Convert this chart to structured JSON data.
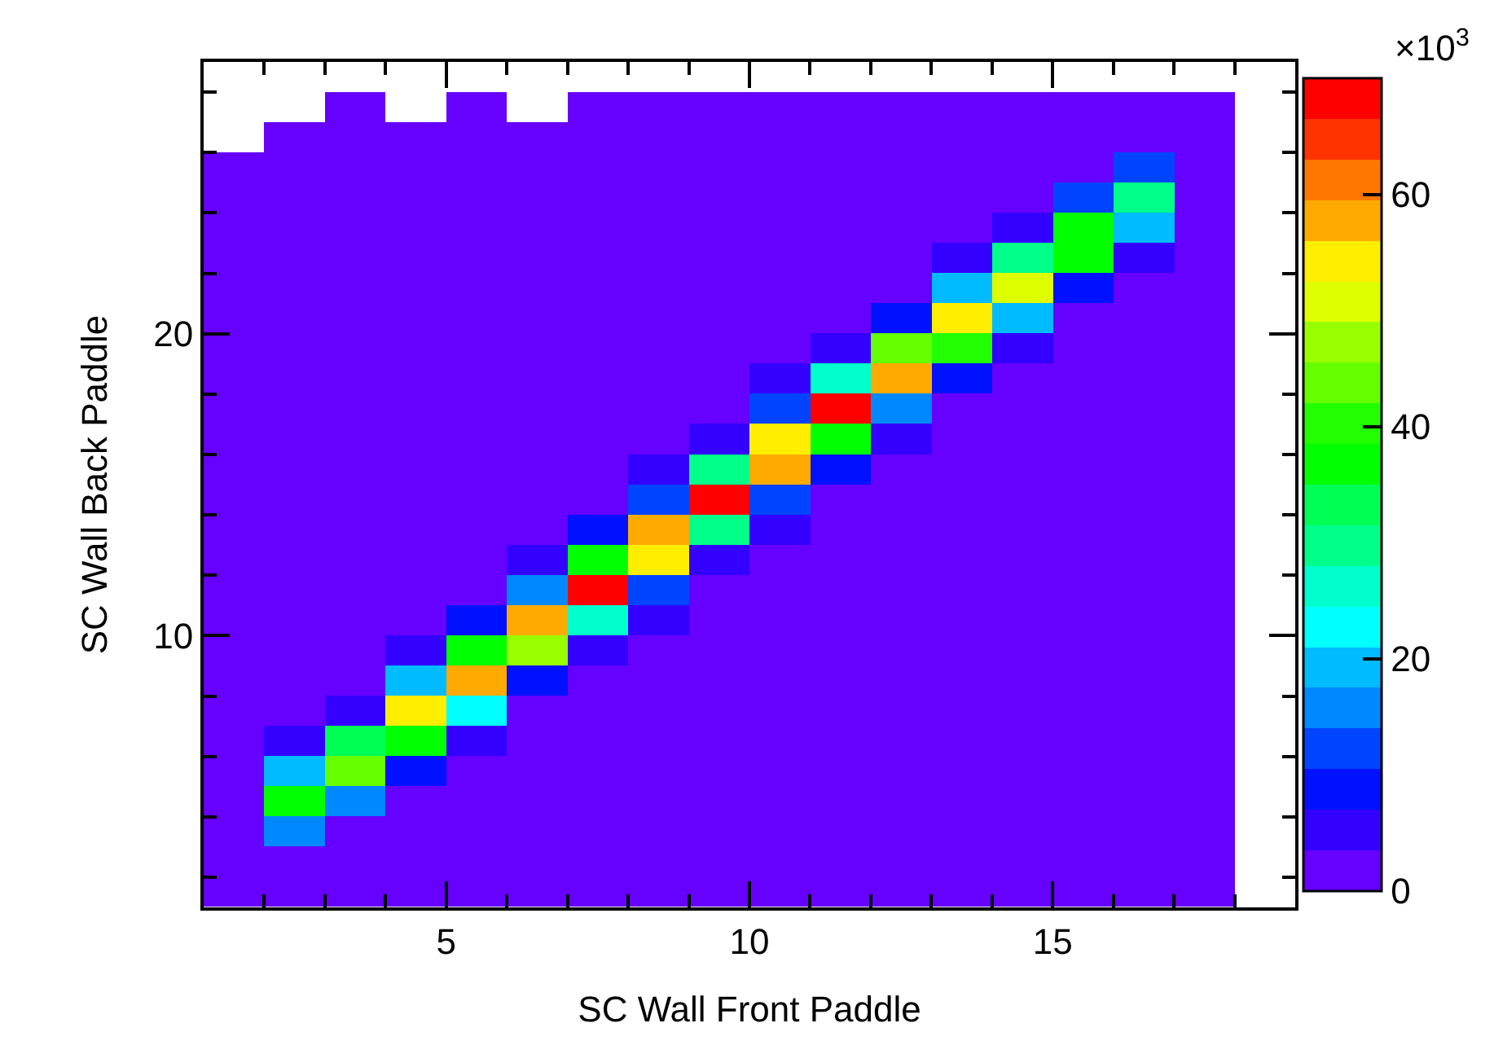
{
  "chart_data": {
    "type": "heatmap",
    "xlabel": "SC Wall Front Paddle",
    "ylabel": "SC Wall Back Paddle",
    "x": [
      1.5,
      2.5,
      3.5,
      4.5,
      5.5,
      6.5,
      7.5,
      8.5,
      9.5,
      10.5,
      11.5,
      12.5,
      13.5,
      14.5,
      15.5,
      16.5,
      17.5
    ],
    "y": [
      27.5,
      26.5,
      25.5,
      24.5,
      23.5,
      22.5,
      21.5,
      20.5,
      19.5,
      18.5,
      17.5,
      16.5,
      15.5,
      14.5,
      13.5,
      12.5,
      11.5,
      10.5,
      9.5,
      8.5,
      7.5,
      6.5,
      5.5,
      4.5,
      3.5,
      2.5,
      1.5
    ],
    "cells": [
      [
        null,
        null,
        1.75,
        null,
        1.75,
        null,
        1.75,
        1.75,
        1.75,
        1.75,
        1.75,
        1.75,
        1.75,
        1.75,
        1.75,
        1.75,
        1.75
      ],
      [
        null,
        1.75,
        1.75,
        1.75,
        1.75,
        1.75,
        1.75,
        1.75,
        1.75,
        1.75,
        1.75,
        1.75,
        1.75,
        1.75,
        1.75,
        1.75,
        1.75
      ],
      [
        1.75,
        1.75,
        1.75,
        1.75,
        1.75,
        1.75,
        1.75,
        1.75,
        1.75,
        1.75,
        1.75,
        1.75,
        1.75,
        1.75,
        1.75,
        12.25,
        1.75
      ],
      [
        1.75,
        1.75,
        1.75,
        1.75,
        1.75,
        1.75,
        1.75,
        1.75,
        1.75,
        1.75,
        1.75,
        1.75,
        1.75,
        1.75,
        12.25,
        29.75,
        1.75
      ],
      [
        1.75,
        1.75,
        1.75,
        1.75,
        1.75,
        1.75,
        1.75,
        1.75,
        1.75,
        1.75,
        1.75,
        1.75,
        1.75,
        5.25,
        36.75,
        19.25,
        1.75
      ],
      [
        1.75,
        1.75,
        1.75,
        1.75,
        1.75,
        1.75,
        1.75,
        1.75,
        1.75,
        1.75,
        1.75,
        1.75,
        5.25,
        29.75,
        36.75,
        5.25,
        1.75
      ],
      [
        1.75,
        1.75,
        1.75,
        1.75,
        1.75,
        1.75,
        1.75,
        1.75,
        1.75,
        1.75,
        1.75,
        1.75,
        19.25,
        50.75,
        8.75,
        1.75,
        1.75
      ],
      [
        1.75,
        1.75,
        1.75,
        1.75,
        1.75,
        1.75,
        1.75,
        1.75,
        1.75,
        1.75,
        1.75,
        8.75,
        54.25,
        19.25,
        1.75,
        1.75,
        1.75
      ],
      [
        1.75,
        1.75,
        1.75,
        1.75,
        1.75,
        1.75,
        1.75,
        1.75,
        1.75,
        1.75,
        5.25,
        43.75,
        40.25,
        5.25,
        1.75,
        1.75,
        1.75
      ],
      [
        1.75,
        1.75,
        1.75,
        1.75,
        1.75,
        1.75,
        1.75,
        1.75,
        1.75,
        5.25,
        26.25,
        57.75,
        8.75,
        1.75,
        1.75,
        1.75,
        1.75
      ],
      [
        1.75,
        1.75,
        1.75,
        1.75,
        1.75,
        1.75,
        1.75,
        1.75,
        1.75,
        12.25,
        68.25,
        15.75,
        1.75,
        1.75,
        1.75,
        1.75,
        1.75
      ],
      [
        1.75,
        1.75,
        1.75,
        1.75,
        1.75,
        1.75,
        1.75,
        1.75,
        5.25,
        54.25,
        36.75,
        5.25,
        1.75,
        1.75,
        1.75,
        1.75,
        1.75
      ],
      [
        1.75,
        1.75,
        1.75,
        1.75,
        1.75,
        1.75,
        1.75,
        5.25,
        29.75,
        57.75,
        8.75,
        1.75,
        1.75,
        1.75,
        1.75,
        1.75,
        1.75
      ],
      [
        1.75,
        1.75,
        1.75,
        1.75,
        1.75,
        1.75,
        1.75,
        12.25,
        68.25,
        12.25,
        1.75,
        1.75,
        1.75,
        1.75,
        1.75,
        1.75,
        1.75
      ],
      [
        1.75,
        1.75,
        1.75,
        1.75,
        1.75,
        1.75,
        8.75,
        57.75,
        29.75,
        5.25,
        1.75,
        1.75,
        1.75,
        1.75,
        1.75,
        1.75,
        1.75
      ],
      [
        1.75,
        1.75,
        1.75,
        1.75,
        1.75,
        5.25,
        36.75,
        54.25,
        5.25,
        1.75,
        1.75,
        1.75,
        1.75,
        1.75,
        1.75,
        1.75,
        1.75
      ],
      [
        1.75,
        1.75,
        1.75,
        1.75,
        1.75,
        15.75,
        68.25,
        12.25,
        1.75,
        1.75,
        1.75,
        1.75,
        1.75,
        1.75,
        1.75,
        1.75,
        1.75
      ],
      [
        1.75,
        1.75,
        1.75,
        1.75,
        8.75,
        57.75,
        26.25,
        5.25,
        1.75,
        1.75,
        1.75,
        1.75,
        1.75,
        1.75,
        1.75,
        1.75,
        1.75
      ],
      [
        1.75,
        1.75,
        1.75,
        5.25,
        36.75,
        47.25,
        5.25,
        1.75,
        1.75,
        1.75,
        1.75,
        1.75,
        1.75,
        1.75,
        1.75,
        1.75,
        1.75
      ],
      [
        1.75,
        1.75,
        1.75,
        19.25,
        57.75,
        8.75,
        1.75,
        1.75,
        1.75,
        1.75,
        1.75,
        1.75,
        1.75,
        1.75,
        1.75,
        1.75,
        1.75
      ],
      [
        1.75,
        1.75,
        5.25,
        54.25,
        22.75,
        1.75,
        1.75,
        1.75,
        1.75,
        1.75,
        1.75,
        1.75,
        1.75,
        1.75,
        1.75,
        1.75,
        1.75
      ],
      [
        1.75,
        5.25,
        33.25,
        36.75,
        5.25,
        1.75,
        1.75,
        1.75,
        1.75,
        1.75,
        1.75,
        1.75,
        1.75,
        1.75,
        1.75,
        1.75,
        1.75
      ],
      [
        1.75,
        19.25,
        43.75,
        8.75,
        1.75,
        1.75,
        1.75,
        1.75,
        1.75,
        1.75,
        1.75,
        1.75,
        1.75,
        1.75,
        1.75,
        1.75,
        1.75
      ],
      [
        1.75,
        36.75,
        15.75,
        1.75,
        1.75,
        1.75,
        1.75,
        1.75,
        1.75,
        1.75,
        1.75,
        1.75,
        1.75,
        1.75,
        1.75,
        1.75,
        1.75
      ],
      [
        1.75,
        15.75,
        1.75,
        1.75,
        1.75,
        1.75,
        1.75,
        1.75,
        1.75,
        1.75,
        1.75,
        1.75,
        1.75,
        1.75,
        1.75,
        1.75,
        1.75
      ],
      [
        1.75,
        1.75,
        1.75,
        1.75,
        1.75,
        1.75,
        1.75,
        1.75,
        1.75,
        1.75,
        1.75,
        1.75,
        1.75,
        1.75,
        1.75,
        1.75,
        1.75
      ],
      [
        1.75,
        1.75,
        1.75,
        1.75,
        1.75,
        1.75,
        1.75,
        1.75,
        1.75,
        1.75,
        1.75,
        1.75,
        1.75,
        1.75,
        1.75,
        1.75,
        1.75
      ]
    ],
    "colors": [
      "#6600ff",
      "#3300ff",
      "#0011ff",
      "#0044ff",
      "#0088ff",
      "#00bbff",
      "#00ffff",
      "#00ffcc",
      "#00ff88",
      "#00ff55",
      "#00ff00",
      "#22ff00",
      "#66ff00",
      "#99ff00",
      "#ddff00",
      "#ffee00",
      "#ffaa00",
      "#ff7700",
      "#ff3300",
      "#ff0000"
    ],
    "clim": [
      0,
      70
    ],
    "cticks": [
      0,
      20,
      40,
      60
    ],
    "annotations": [
      "×10$^{3}$"
    ],
    "xlim": [
      1,
      19
    ],
    "xticks": [
      {
        "value": 2,
        "label": null
      },
      {
        "value": 3,
        "label": null
      },
      {
        "value": 4,
        "label": null
      },
      5,
      {
        "value": 6,
        "label": null
      },
      {
        "value": 7,
        "label": null
      },
      {
        "value": 8,
        "label": null
      },
      {
        "value": 9,
        "label": null
      },
      10,
      {
        "value": 11,
        "label": null
      },
      {
        "value": 12,
        "label": null
      },
      {
        "value": 13,
        "label": null
      },
      {
        "value": 14,
        "label": null
      },
      15,
      {
        "value": 16,
        "label": null
      },
      {
        "value": 17,
        "label": null
      },
      {
        "value": 18,
        "label": null
      }
    ],
    "ylim": [
      1,
      29
    ],
    "yticks": [
      {
        "value": 2,
        "label": null
      },
      {
        "value": 4,
        "label": null
      },
      {
        "value": 6,
        "label": null
      },
      {
        "value": 8,
        "label": null
      },
      10,
      {
        "value": 12,
        "label": null
      },
      {
        "value": 14,
        "label": null
      },
      {
        "value": 16,
        "label": null
      },
      {
        "value": 18,
        "label": null
      },
      20,
      {
        "value": 22,
        "label": null
      },
      {
        "value": 24,
        "label": null
      },
      {
        "value": 26,
        "label": null
      },
      {
        "value": 28,
        "label": null
      }
    ]
  }
}
